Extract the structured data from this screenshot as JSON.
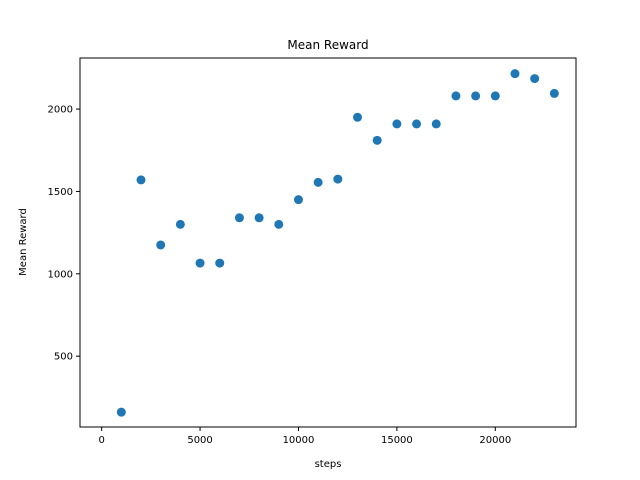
{
  "chart_data": {
    "type": "scatter",
    "title": "Mean Reward",
    "xlabel": "steps",
    "ylabel": "Mean Reward",
    "xlim": [
      -1100,
      24100
    ],
    "ylim": [
      70,
      2310
    ],
    "xticks": [
      0,
      5000,
      10000,
      15000,
      20000
    ],
    "yticks": [
      500,
      1000,
      1500,
      2000
    ],
    "grid": false,
    "marker_color": "#1f77b4",
    "series": [
      {
        "x": [
          1000,
          2000,
          3000,
          4000,
          5000,
          6000,
          7000,
          8000,
          9000,
          10000,
          11000,
          12000,
          13000,
          14000,
          15000,
          16000,
          17000,
          18000,
          19000,
          20000,
          21000,
          22000,
          23000
        ],
        "y": [
          160,
          1570,
          1175,
          1300,
          1065,
          1065,
          1340,
          1340,
          1300,
          1450,
          1555,
          1575,
          1950,
          1810,
          1910,
          1910,
          1910,
          2080,
          2080,
          2080,
          2215,
          2185,
          2095
        ]
      }
    ]
  }
}
